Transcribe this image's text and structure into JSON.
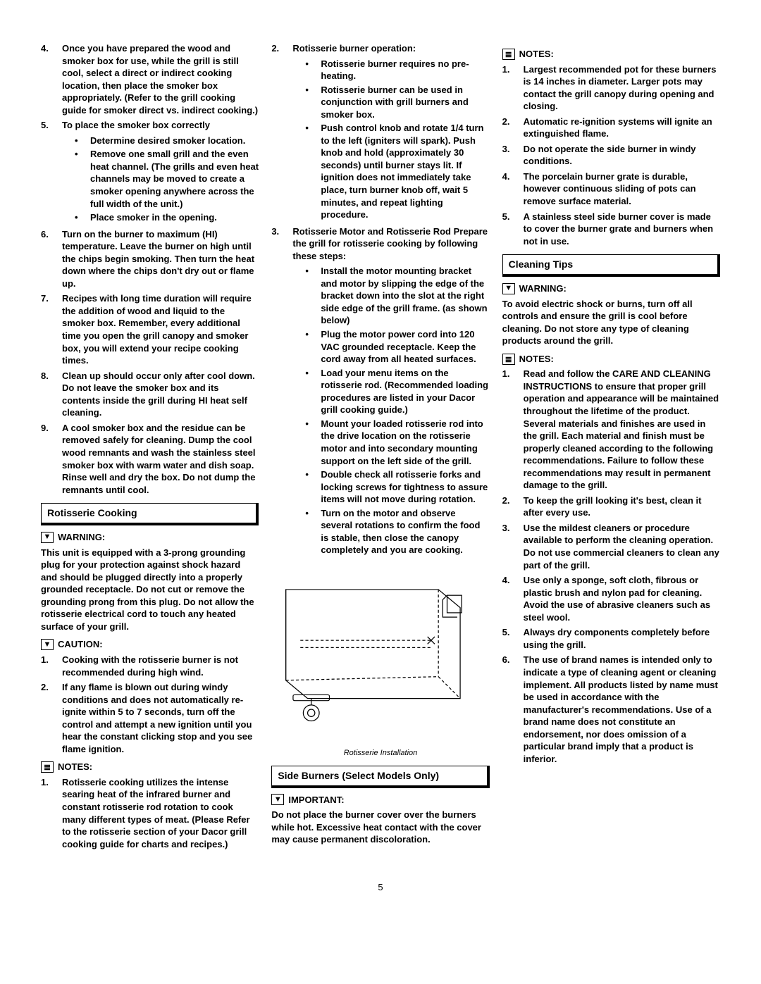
{
  "page_number": "5",
  "figure_caption": "Rotisserie Installation",
  "colors": {
    "text": "#000000",
    "bg": "#ffffff",
    "border": "#000000"
  },
  "typography": {
    "body_pt": 13,
    "header_pt": 14,
    "caption_pt": 11,
    "weight_body": "bold"
  },
  "col1": {
    "items": [
      {
        "n": "4.",
        "t": "Once you have prepared the wood and smoker box for use, while the grill is still cool, select a direct or indirect cooking location, then place the smoker box appropriately.  (Refer to the grill cooking guide for smoker direct vs. indirect cooking.)"
      },
      {
        "n": "5.",
        "t": "To place the smoker box correctly",
        "sub": [
          "Determine desired smoker location.",
          "Remove one small grill and the even heat channel. (The grills and even heat channels may be moved to create a smoker opening anywhere across the full width of the unit.)",
          "Place smoker in the opening."
        ]
      },
      {
        "n": "6.",
        "t": "Turn on the burner to maximum (HI) temperature. Leave the burner on high until the chips begin smoking. Then turn the heat down where the chips don't dry out or flame up."
      },
      {
        "n": "7.",
        "t": "Recipes with long time duration will require the addition of wood and liquid to the smoker box. Remember, every additional time you open the grill canopy and smoker box, you will extend your recipe cooking times."
      },
      {
        "n": "8.",
        "t": "Clean up should occur only after cool down. Do not leave the smoker box and its contents inside the grill during HI heat self cleaning."
      },
      {
        "n": "9.",
        "t": "A cool smoker box and the residue can be removed safely for cleaning. Dump the cool wood remnants and wash the stainless steel smoker box with warm water and dish soap. Rinse well and dry the box. Do not dump the remnants until cool."
      }
    ],
    "section_rotisserie": "Rotisserie Cooking",
    "warning_label": "WARNING:",
    "warning_text": "This unit is equipped with a 3-prong grounding  plug for your protection against shock hazard and should be plugged directly into a properly grounded receptacle. Do not cut or remove the grounding prong from this plug. Do not allow the rotisserie electrical cord to touch any heated surface of your grill.",
    "caution_label": "CAUTION:",
    "caution_items": [
      {
        "n": "1.",
        "t": "Cooking with the rotisserie burner is not recommended during high wind."
      },
      {
        "n": "2.",
        "t": "If any flame is blown out during windy conditions and does not automatically re-ignite within 5 to 7 seconds, turn off the control and attempt a new ignition until you hear the constant clicking stop and you see flame ignition."
      }
    ],
    "notes_label": "NOTES:",
    "notes_items": [
      {
        "n": "1.",
        "t": "Rotisserie cooking utilizes the intense searing heat of the infrared burner and constant rotisserie rod rotation to cook many different types of meat. (Please Refer to the rotisserie section of your Dacor grill cooking guide for charts and recipes.)"
      }
    ]
  },
  "col2": {
    "items": [
      {
        "n": "2.",
        "t": "Rotisserie burner operation:",
        "sub": [
          "Rotisserie burner requires no pre-heating.",
          "Rotisserie burner can be used in conjunction with grill burners and smoker box.",
          "Push control knob and rotate 1/4 turn to the left (igniters will spark). Push knob and hold (approximately 30 seconds) until burner stays lit. If ignition does not immediately take place, turn burner knob off, wait 5 minutes, and repeat lighting procedure."
        ]
      },
      {
        "n": "3.",
        "t": "Rotisserie Motor and Rotisserie Rod Prepare the grill for rotisserie cooking by following these steps:",
        "sub": [
          "Install the motor mounting bracket and motor by slipping the edge of the bracket down into the slot at the right side edge of the grill frame. (as shown below)",
          "Plug the motor power cord into 120 VAC grounded receptacle. Keep the cord away from all heated surfaces.",
          "Load your menu items on the rotisserie rod. (Recommended loading procedures are listed in your Dacor grill cooking guide.)",
          "Mount your loaded rotisserie rod into the drive location on the rotisserie motor and into secondary mounting support on the left side of the grill.",
          "Double check all rotisserie forks and locking screws for tightness to assure items will not move during rotation.",
          "Turn on the motor and observe several rotations to confirm the food is stable, then close the canopy completely and you are cooking."
        ]
      }
    ],
    "section_side": "Side Burners (Select Models Only)",
    "important_label": "IMPORTANT:",
    "important_text": "Do not place the burner cover over the burners while hot. Excessive heat contact with the cover may cause permanent discoloration."
  },
  "col3": {
    "notes_label_1": "NOTES:",
    "notes_items_1": [
      {
        "n": "1.",
        "t": "Largest recommended pot for these burners is 14 inches in diameter. Larger pots may contact the grill canopy during opening and closing."
      },
      {
        "n": "2.",
        "t": "Automatic re-ignition systems will ignite an extinguished flame."
      },
      {
        "n": "3.",
        "t": "Do not operate the side burner in windy conditions."
      },
      {
        "n": "4.",
        "t": "The porcelain burner grate is durable, however continuous sliding of pots can remove surface material."
      },
      {
        "n": "5.",
        "t": "A stainless steel side burner cover is made to cover the burner grate and burners when not in use."
      }
    ],
    "section_cleaning": "Cleaning Tips",
    "warning_label": "WARNING:",
    "warning_text": "To avoid electric shock or burns, turn off all controls and ensure the grill is cool before cleaning. Do not store any type of cleaning products around the grill.",
    "notes_label_2": "NOTES:",
    "notes_items_2": [
      {
        "n": "1.",
        "t": "Read and follow the CARE AND CLEANING INSTRUCTIONS to ensure that proper grill operation and appearance will be maintained throughout the lifetime of the product. Several materials and finishes are used in the grill. Each material and finish must be properly cleaned according to the following recommendations. Failure to follow these recommendations may result in permanent damage to the grill."
      },
      {
        "n": "2.",
        "t": "To keep the grill looking it's best, clean it after every use."
      },
      {
        "n": "3.",
        "t": "Use the mildest cleaners or procedure available to perform the cleaning operation. Do not use commercial cleaners to clean any part of the grill."
      },
      {
        "n": "4.",
        "t": "Use only a sponge, soft cloth, fibrous or plastic brush and nylon pad for cleaning. Avoid the use of abrasive cleaners such as steel wool."
      },
      {
        "n": "5.",
        "t": "Always dry components completely before using the grill."
      },
      {
        "n": "6.",
        "t": "The use of brand names is intended only to indicate a type of cleaning agent or cleaning implement. All products listed by name must be used in accordance with the manufacturer's recommendations. Use of a brand name does not constitute an endorsement, nor does omission of a particular brand imply that a product is inferior."
      }
    ]
  }
}
